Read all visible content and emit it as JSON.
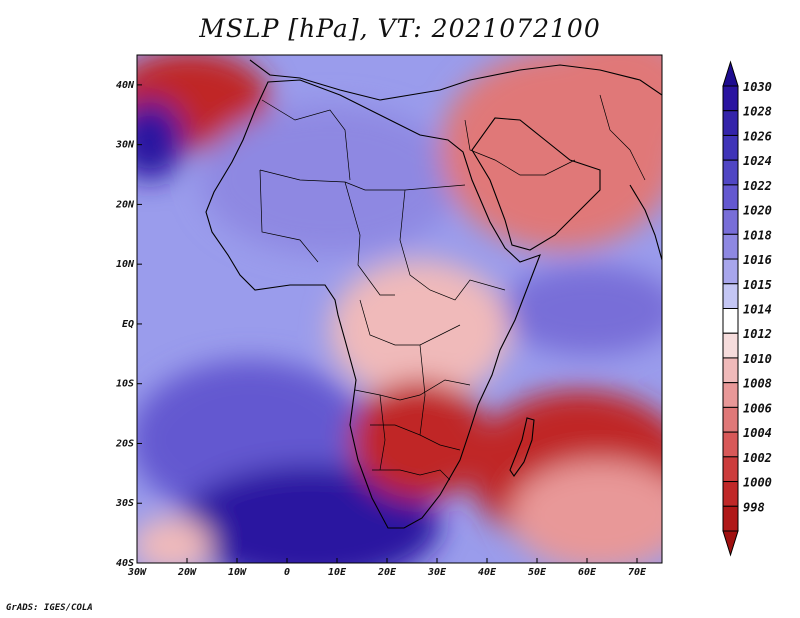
{
  "title": "MSLP [hPa], VT: 2021072100",
  "credit": "GrADS: IGES/COLA",
  "map": {
    "lon_range": [
      -30,
      75
    ],
    "lat_range": [
      -40,
      45
    ],
    "lon_ticks": [
      {
        "value": -30,
        "label": "30W"
      },
      {
        "value": -20,
        "label": "20W"
      },
      {
        "value": -10,
        "label": "10W"
      },
      {
        "value": 0,
        "label": "0"
      },
      {
        "value": 10,
        "label": "10E"
      },
      {
        "value": 20,
        "label": "20E"
      },
      {
        "value": 30,
        "label": "30E"
      },
      {
        "value": 40,
        "label": "40E"
      },
      {
        "value": 50,
        "label": "50E"
      },
      {
        "value": 60,
        "label": "60E"
      },
      {
        "value": 70,
        "label": "70E"
      }
    ],
    "lat_ticks": [
      {
        "value": 40,
        "label": "40N"
      },
      {
        "value": 30,
        "label": "30N"
      },
      {
        "value": 20,
        "label": "20N"
      },
      {
        "value": 10,
        "label": "10N"
      },
      {
        "value": 0,
        "label": "EQ"
      },
      {
        "value": -10,
        "label": "10S"
      },
      {
        "value": -20,
        "label": "20S"
      },
      {
        "value": -30,
        "label": "30S"
      },
      {
        "value": -40,
        "label": "40S"
      }
    ],
    "ocean_color": "#9a9cec",
    "coastline_color": "#000000"
  },
  "colorbar": {
    "levels": [
      {
        "label": "1030",
        "color": "#2a14a0"
      },
      {
        "label": "1028",
        "color": "#3424aa"
      },
      {
        "label": "1026",
        "color": "#4034b8"
      },
      {
        "label": "1024",
        "color": "#5046c4"
      },
      {
        "label": "1022",
        "color": "#6458d0"
      },
      {
        "label": "1020",
        "color": "#786ed8"
      },
      {
        "label": "1018",
        "color": "#8e88e2"
      },
      {
        "label": "1016",
        "color": "#a8a6ec"
      },
      {
        "label": "1015",
        "color": "#c4c6f4"
      },
      {
        "label": "1014",
        "color": "#ffffff"
      },
      {
        "label": "1012",
        "color": "#f6dcdc"
      },
      {
        "label": "1010",
        "color": "#f0baba"
      },
      {
        "label": "1008",
        "color": "#e89898"
      },
      {
        "label": "1006",
        "color": "#e07878"
      },
      {
        "label": "1004",
        "color": "#d85858"
      },
      {
        "label": "1002",
        "color": "#cc3c3c"
      },
      {
        "label": "1000",
        "color": "#c02828"
      },
      {
        "label": "998",
        "color": "#b01818"
      }
    ],
    "top_color": "#1e0c90",
    "bottom_color": "#a01010"
  },
  "pressure_regions": [
    {
      "name": "ocean-base",
      "color": "#9a9cec"
    },
    {
      "name": "south-atlantic-high",
      "color": "#2a14a0"
    },
    {
      "name": "indian-ocean-high",
      "color": "#2a14a0"
    },
    {
      "name": "azores-high",
      "color": "#6458d0"
    },
    {
      "name": "southwest-low",
      "color": "#c02828"
    },
    {
      "name": "middle-east-low",
      "color": "#c02828"
    },
    {
      "name": "sahara-low",
      "color": "#e89898"
    },
    {
      "name": "arabian-sea-trough",
      "color": "#f0baba"
    }
  ]
}
